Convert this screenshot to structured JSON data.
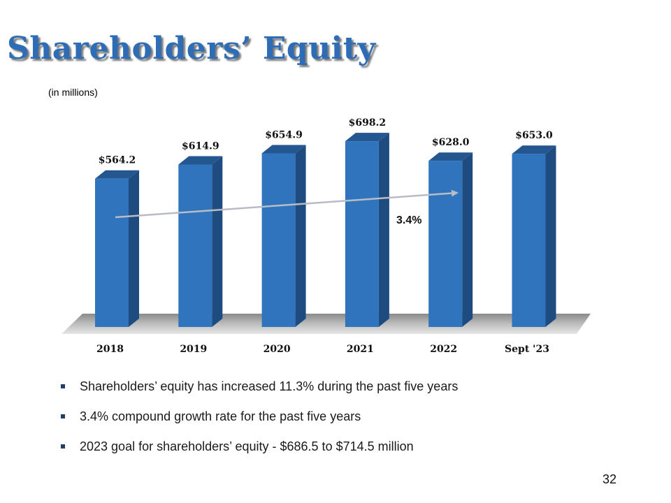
{
  "title": "Shareholders’ Equity",
  "subtitle": "(in millions)",
  "colors": {
    "title": "#2e6db6",
    "bar_front": "#2f74bc",
    "bar_side": "#1f4c80",
    "bar_top": "#24568f",
    "floor": "#9a9a9a",
    "trend_arrow": "#b8bcc4"
  },
  "chart_data": {
    "type": "bar",
    "categories": [
      "2018",
      "2019",
      "2020",
      "2021",
      "2022",
      "Sept '23"
    ],
    "values": [
      564.2,
      614.9,
      654.9,
      698.2,
      628.0,
      653.0
    ],
    "value_labels": [
      "$564.2",
      "$614.9",
      "$654.9",
      "$698.2",
      "$628.0",
      "$653.0"
    ],
    "annotation": "3.4%",
    "style": "3d-columns",
    "grid": false,
    "legend": false
  },
  "bullets": [
    "Shareholders’ equity has increased 11.3% during the past five years",
    "3.4% compound growth rate for the past five years",
    "2023 goal for shareholders’ equity - $686.5 to $714.5 million"
  ],
  "page_number": "32"
}
